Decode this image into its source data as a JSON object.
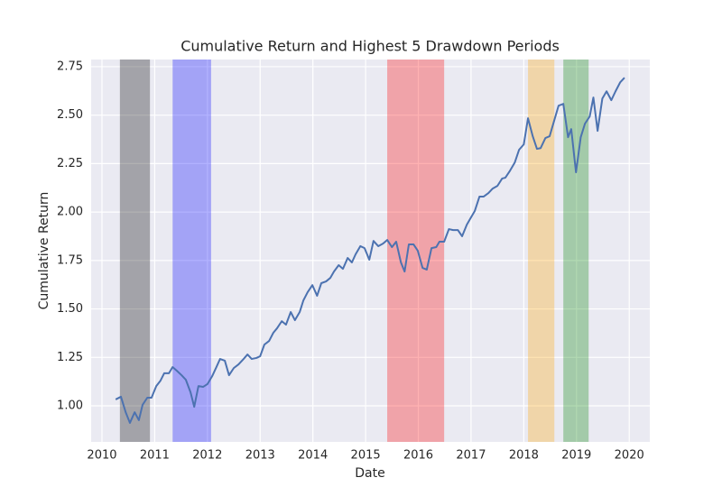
{
  "chart_data": {
    "type": "line",
    "title": "Cumulative Return and Highest 5 Drawdown Periods",
    "xlabel": "Date",
    "ylabel": "Cumulative Return",
    "grid": true,
    "xlim": [
      2009.795,
      2020.39
    ],
    "ylim": [
      0.814,
      2.787
    ],
    "xticks": [
      2010,
      2011,
      2012,
      2013,
      2014,
      2015,
      2016,
      2017,
      2018,
      2019,
      2020
    ],
    "yticks": [
      {
        "value": 1.0,
        "label": "1.00"
      },
      {
        "value": 1.25,
        "label": "1.25"
      },
      {
        "value": 1.5,
        "label": "1.50"
      },
      {
        "value": 1.75,
        "label": "1.75"
      },
      {
        "value": 2.0,
        "label": "2.00"
      },
      {
        "value": 2.25,
        "label": "2.25"
      },
      {
        "value": 2.5,
        "label": "2.50"
      },
      {
        "value": 2.75,
        "label": "2.75"
      }
    ],
    "spans": [
      {
        "start": 2010.34,
        "end": 2010.91,
        "color": "black"
      },
      {
        "start": 2011.34,
        "end": 2012.07,
        "color": "blue"
      },
      {
        "start": 2015.41,
        "end": 2016.49,
        "color": "red"
      },
      {
        "start": 2018.08,
        "end": 2018.58,
        "color": "orange"
      },
      {
        "start": 2018.75,
        "end": 2019.23,
        "color": "green"
      }
    ],
    "x": [
      2010.26,
      2010.36,
      2010.45,
      2010.53,
      2010.62,
      2010.7,
      2010.77,
      2010.86,
      2010.94,
      2011.03,
      2011.11,
      2011.18,
      2011.27,
      2011.34,
      2011.42,
      2011.51,
      2011.59,
      2011.68,
      2011.75,
      2011.83,
      2011.92,
      2012.0,
      2012.09,
      2012.17,
      2012.24,
      2012.33,
      2012.41,
      2012.5,
      2012.59,
      2012.67,
      2012.76,
      2012.84,
      2012.93,
      2013.0,
      2013.08,
      2013.17,
      2013.25,
      2013.32,
      2013.41,
      2013.49,
      2013.58,
      2013.66,
      2013.75,
      2013.82,
      2013.9,
      2013.99,
      2014.08,
      2014.16,
      2014.25,
      2014.33,
      2014.4,
      2014.49,
      2014.57,
      2014.66,
      2014.74,
      2014.81,
      2014.9,
      2014.98,
      2015.07,
      2015.15,
      2015.24,
      2015.33,
      2015.41,
      2015.5,
      2015.58,
      2015.67,
      2015.74,
      2015.82,
      2015.91,
      2015.99,
      2016.08,
      2016.16,
      2016.25,
      2016.34,
      2016.4,
      2016.49,
      2016.58,
      2016.66,
      2016.75,
      2016.83,
      2016.92,
      2016.99,
      2017.07,
      2017.16,
      2017.24,
      2017.33,
      2017.41,
      2017.5,
      2017.59,
      2017.65,
      2017.74,
      2017.83,
      2017.91,
      2018.0,
      2018.08,
      2018.17,
      2018.25,
      2018.32,
      2018.41,
      2018.49,
      2018.58,
      2018.66,
      2018.75,
      2018.84,
      2018.9,
      2018.99,
      2019.08,
      2019.16,
      2019.25,
      2019.32,
      2019.4,
      2019.49,
      2019.57,
      2019.66,
      2019.74,
      2019.83,
      2019.91
    ],
    "series": [
      {
        "color": "#4c72b0",
        "values": [
          1.033,
          1.047,
          0.967,
          0.912,
          0.967,
          0.926,
          1.005,
          1.042,
          1.042,
          1.102,
          1.13,
          1.168,
          1.168,
          1.2,
          1.181,
          1.158,
          1.135,
          1.07,
          0.995,
          1.102,
          1.098,
          1.112,
          1.153,
          1.2,
          1.242,
          1.233,
          1.158,
          1.195,
          1.214,
          1.237,
          1.265,
          1.242,
          1.247,
          1.256,
          1.316,
          1.335,
          1.377,
          1.4,
          1.437,
          1.419,
          1.484,
          1.442,
          1.484,
          1.544,
          1.586,
          1.623,
          1.568,
          1.633,
          1.642,
          1.66,
          1.693,
          1.726,
          1.707,
          1.763,
          1.74,
          1.782,
          1.824,
          1.814,
          1.754,
          1.851,
          1.824,
          1.837,
          1.856,
          1.819,
          1.847,
          1.74,
          1.693,
          1.833,
          1.833,
          1.8,
          1.712,
          1.703,
          1.814,
          1.819,
          1.847,
          1.847,
          1.912,
          1.907,
          1.907,
          1.875,
          1.935,
          1.968,
          2.005,
          2.08,
          2.08,
          2.098,
          2.121,
          2.135,
          2.173,
          2.177,
          2.214,
          2.256,
          2.321,
          2.349,
          2.484,
          2.391,
          2.326,
          2.33,
          2.382,
          2.391,
          2.475,
          2.549,
          2.558,
          2.386,
          2.428,
          2.205,
          2.386,
          2.456,
          2.493,
          2.591,
          2.419,
          2.586,
          2.623,
          2.577,
          2.623,
          2.67,
          2.693
        ]
      }
    ]
  }
}
